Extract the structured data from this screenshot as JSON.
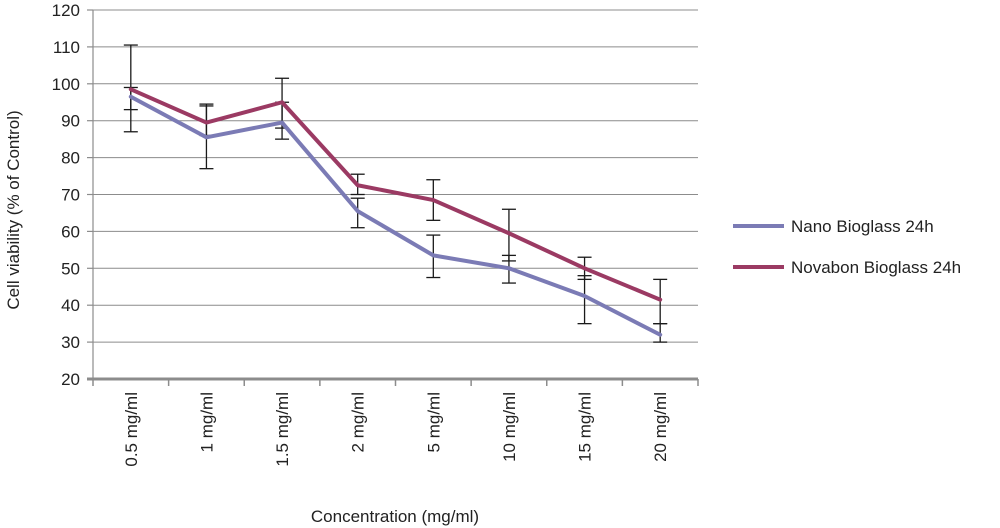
{
  "chart_data": {
    "type": "line",
    "title": "",
    "xlabel": "Concentration (mg/ml)",
    "ylabel": "Cell viability (% of Control)",
    "categories": [
      "0.5 mg/ml",
      "1 mg/ml",
      "1.5 mg/ml",
      "2 mg/ml",
      "5 mg/ml",
      "10 mg/ml",
      "15 mg/ml",
      "20 mg/ml"
    ],
    "ylim": [
      20,
      120
    ],
    "yticks": [
      20,
      30,
      40,
      50,
      60,
      70,
      80,
      90,
      100,
      110,
      120
    ],
    "grid": true,
    "legend_position": "right",
    "series": [
      {
        "name": "Nano Bioglass 24h",
        "color": "#7b7bb5",
        "values": [
          96.5,
          85.5,
          89.5,
          65.5,
          53.5,
          50,
          42.5,
          32
        ],
        "error_low": [
          87,
          77,
          85,
          61,
          47.5,
          46,
          35,
          30
        ],
        "error_high": [
          99,
          94,
          95,
          69,
          59,
          53.5,
          48,
          35
        ]
      },
      {
        "name": "Novabon Bioglass 24h",
        "color": "#9b3a63",
        "values": [
          98.5,
          89.5,
          95,
          72.5,
          68.5,
          59.5,
          50,
          41.5
        ],
        "error_low": [
          93,
          86,
          88,
          70,
          63,
          52,
          47,
          35
        ],
        "error_high": [
          110.5,
          94.5,
          101.5,
          75.5,
          74,
          66,
          53,
          47
        ]
      }
    ]
  }
}
